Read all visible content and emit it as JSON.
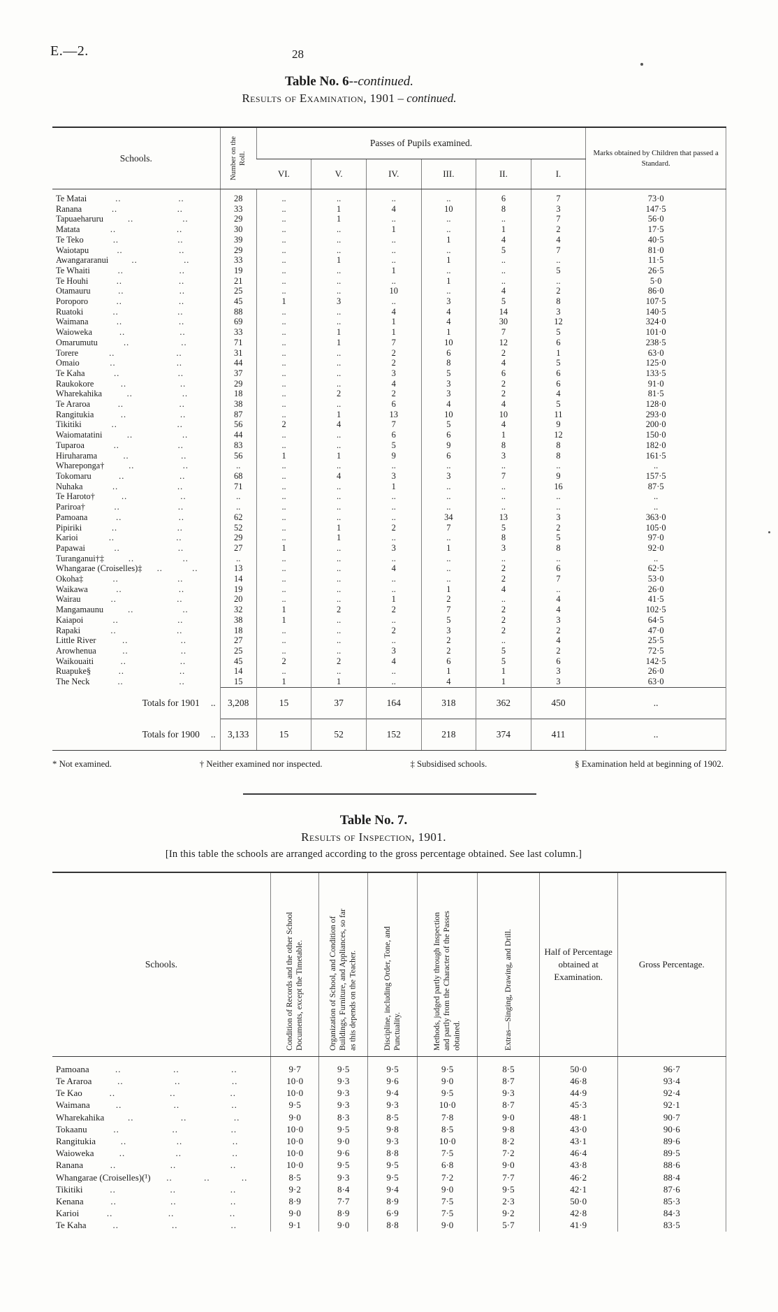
{
  "page": {
    "doc_ref": "E.—2.",
    "page_number": "28"
  },
  "leader": "..",
  "table6": {
    "title_main": "Table No. 6",
    "title_suffix": "--continued.",
    "subtitle_main": "Results of Examination, 1901",
    "subtitle_suffix": "– continued.",
    "headers": {
      "schools": "Schools.",
      "roll": "Number on the Roll.",
      "passes_group": "Passes of Pupils examined.",
      "standards": [
        "VI.",
        "V.",
        "IV.",
        "III.",
        "II.",
        "I."
      ],
      "marks": "Marks obtained by Children that passed a Standard."
    },
    "rows": [
      {
        "name": "Te Matai",
        "values": [
          "28",
          "..",
          "..",
          "..",
          "..",
          "6",
          "7",
          "73·0"
        ]
      },
      {
        "name": "Ranana",
        "values": [
          "33",
          "..",
          "1",
          "4",
          "10",
          "8",
          "3",
          "147·5"
        ]
      },
      {
        "name": "Tapuaeharuru",
        "values": [
          "29",
          "..",
          "1",
          "..",
          "..",
          "..",
          "7",
          "56·0"
        ]
      },
      {
        "name": "Matata",
        "values": [
          "30",
          "..",
          "..",
          "1",
          "..",
          "1",
          "2",
          "17·5"
        ]
      },
      {
        "name": "Te Teko",
        "values": [
          "39",
          "..",
          "..",
          "..",
          "1",
          "4",
          "4",
          "40·5"
        ]
      },
      {
        "name": "Waiotapu",
        "values": [
          "29",
          "..",
          "..",
          "..",
          "..",
          "5",
          "7",
          "81·0"
        ]
      },
      {
        "name": "Awangararanui",
        "values": [
          "33",
          "..",
          "1",
          "..",
          "1",
          "..",
          "..",
          "11·5"
        ]
      },
      {
        "name": "Te Whaiti",
        "values": [
          "19",
          "..",
          "..",
          "1",
          "..",
          "..",
          "5",
          "26·5"
        ]
      },
      {
        "name": "Te Houhi",
        "values": [
          "21",
          "..",
          "..",
          "..",
          "1",
          "..",
          "..",
          "5·0"
        ]
      },
      {
        "name": "Otamauru",
        "values": [
          "25",
          "..",
          "..",
          "10",
          "..",
          "4",
          "2",
          "86·0"
        ]
      },
      {
        "name": "Poroporo",
        "values": [
          "45",
          "1",
          "3",
          "..",
          "3",
          "5",
          "8",
          "107·5"
        ]
      },
      {
        "name": "Ruatoki",
        "values": [
          "88",
          "..",
          "..",
          "4",
          "4",
          "14",
          "3",
          "140·5"
        ]
      },
      {
        "name": "Waimana",
        "values": [
          "69",
          "..",
          "..",
          "1",
          "4",
          "30",
          "12",
          "324·0"
        ]
      },
      {
        "name": "Waioweka",
        "values": [
          "33",
          "..",
          "1",
          "1",
          "1",
          "7",
          "5",
          "101·0"
        ]
      },
      {
        "name": "Omarumutu",
        "values": [
          "71",
          "..",
          "1",
          "7",
          "10",
          "12",
          "6",
          "238·5"
        ]
      },
      {
        "name": "Torere",
        "values": [
          "31",
          "..",
          "..",
          "2",
          "6",
          "2",
          "1",
          "63·0"
        ]
      },
      {
        "name": "Omaio",
        "values": [
          "44",
          "..",
          "..",
          "2",
          "8",
          "4",
          "5",
          "125·0"
        ]
      },
      {
        "name": "Te Kaha",
        "values": [
          "37",
          "..",
          "..",
          "3",
          "5",
          "6",
          "6",
          "133·5"
        ]
      },
      {
        "name": "Raukokore",
        "values": [
          "29",
          "..",
          "..",
          "4",
          "3",
          "2",
          "6",
          "91·0"
        ]
      },
      {
        "name": "Wharekahika",
        "values": [
          "18",
          "..",
          "2",
          "2",
          "3",
          "2",
          "4",
          "81·5"
        ]
      },
      {
        "name": "Te Araroa",
        "values": [
          "38",
          "..",
          "..",
          "6",
          "4",
          "4",
          "5",
          "128·0"
        ]
      },
      {
        "name": "Rangitukia",
        "values": [
          "87",
          "..",
          "1",
          "13",
          "10",
          "10",
          "11",
          "293·0"
        ]
      },
      {
        "name": "Tikitiki",
        "values": [
          "56",
          "2",
          "4",
          "7",
          "5",
          "4",
          "9",
          "200·0"
        ]
      },
      {
        "name": "Waiomatatini",
        "values": [
          "44",
          "..",
          "..",
          "6",
          "6",
          "1",
          "12",
          "150·0"
        ]
      },
      {
        "name": "Tuparoa",
        "values": [
          "83",
          "..",
          "..",
          "5",
          "9",
          "8",
          "8",
          "182·0"
        ]
      },
      {
        "name": "Hiruharama",
        "values": [
          "56",
          "1",
          "1",
          "9",
          "6",
          "3",
          "8",
          "161·5"
        ]
      },
      {
        "name": "Whareponga†",
        "values": [
          "..",
          "..",
          "..",
          "..",
          "..",
          "..",
          "..",
          ".."
        ]
      },
      {
        "name": "Tokomaru",
        "values": [
          "68",
          "..",
          "4",
          "3",
          "3",
          "7",
          "9",
          "157·5"
        ]
      },
      {
        "name": "Nuhaka",
        "values": [
          "71",
          "..",
          "..",
          "1",
          "..",
          "..",
          "16",
          "87·5"
        ]
      },
      {
        "name": "Te Haroto†",
        "values": [
          "..",
          "..",
          "..",
          "..",
          "..",
          "..",
          "..",
          ".."
        ]
      },
      {
        "name": "Pariroa†",
        "values": [
          "..",
          "..",
          "..",
          "..",
          "..",
          "..",
          "..",
          ".."
        ]
      },
      {
        "name": "Pamoana",
        "values": [
          "62",
          "..",
          "..",
          "..",
          "34",
          "13",
          "3",
          "363·0"
        ]
      },
      {
        "name": "Pipiriki",
        "values": [
          "52",
          "..",
          "1",
          "2",
          "7",
          "5",
          "2",
          "105·0"
        ]
      },
      {
        "name": "Karioi",
        "values": [
          "29",
          "..",
          "1",
          "..",
          "..",
          "8",
          "5",
          "97·0"
        ]
      },
      {
        "name": "Papawai",
        "values": [
          "27",
          "1",
          "..",
          "3",
          "1",
          "3",
          "8",
          "92·0"
        ]
      },
      {
        "name": "Turanganui†‡",
        "values": [
          "..",
          "..",
          "..",
          "..",
          "..",
          "..",
          "..",
          ".."
        ]
      },
      {
        "name": "Whangarae (Croiselles)‡",
        "values": [
          "13",
          "..",
          "..",
          "4",
          "..",
          "2",
          "6",
          "62·5"
        ]
      },
      {
        "name": "Okoha‡",
        "values": [
          "14",
          "..",
          "..",
          "..",
          "..",
          "2",
          "7",
          "53·0"
        ]
      },
      {
        "name": "Waikawa",
        "values": [
          "19",
          "..",
          "..",
          "..",
          "1",
          "4",
          "..",
          "26·0"
        ]
      },
      {
        "name": "Wairau",
        "values": [
          "20",
          "..",
          "..",
          "1",
          "2",
          "..",
          "4",
          "41·5"
        ]
      },
      {
        "name": "Mangamaunu",
        "values": [
          "32",
          "1",
          "2",
          "2",
          "7",
          "2",
          "4",
          "102·5"
        ]
      },
      {
        "name": "Kaiapoi",
        "values": [
          "38",
          "1",
          "..",
          "..",
          "5",
          "2",
          "3",
          "64·5"
        ]
      },
      {
        "name": "Rapaki",
        "values": [
          "18",
          "..",
          "..",
          "2",
          "3",
          "2",
          "2",
          "47·0"
        ]
      },
      {
        "name": "Little River",
        "values": [
          "27",
          "..",
          "..",
          "..",
          "2",
          "..",
          "4",
          "25·5"
        ]
      },
      {
        "name": "Arowhenua",
        "values": [
          "25",
          "..",
          "..",
          "3",
          "2",
          "5",
          "2",
          "72·5"
        ]
      },
      {
        "name": "Waikouaiti",
        "values": [
          "45",
          "2",
          "2",
          "4",
          "6",
          "5",
          "6",
          "142·5"
        ]
      },
      {
        "name": "Ruapuke§",
        "values": [
          "14",
          "..",
          "..",
          "..",
          "1",
          "1",
          "3",
          "26·0"
        ]
      },
      {
        "name": "The Neck",
        "values": [
          "15",
          "1",
          "1",
          "..",
          "4",
          "1",
          "3",
          "63·0"
        ]
      }
    ],
    "totals": [
      {
        "label": "Totals for 1901",
        "values": [
          "3,208",
          "15",
          "37",
          "164",
          "318",
          "362",
          "450",
          ".."
        ]
      },
      {
        "label": "Totals for 1900",
        "values": [
          "3,133",
          "15",
          "52",
          "152",
          "218",
          "374",
          "411",
          ".."
        ]
      }
    ],
    "footnotes": [
      "* Not examined.",
      "† Neither examined nor inspected.",
      "‡ Subsidised schools.",
      "§ Examination held at beginning of 1902."
    ]
  },
  "table7": {
    "title": "Table No. 7.",
    "subtitle": "Results of Inspection, 1901.",
    "note": "[In this table the schools are arranged according to the gross percentage obtained.  See last column.]",
    "headers": {
      "schools": "Schools.",
      "rotated": [
        "Condition of Records and the other School Documents, except the Timetable.",
        "Organization of School, and Condition of Buildings, Furniture, and Appliances, so far as this depends on the Teacher.",
        "Discipline, including Order, Tone, and Punctuality.",
        "Methods, judged partly through Inspection and partly from the Character of the Passes obtained.",
        "Extras—Singing, Drawing, and Drill."
      ],
      "half": "Half of Percentage obtained at Examination.",
      "gross": "Gross Percentage."
    },
    "rows": [
      {
        "name": "Pamoana",
        "values": [
          "9·7",
          "9·5",
          "9·5",
          "9·5",
          "8·5",
          "50·0",
          "96·7"
        ]
      },
      {
        "name": "Te Araroa",
        "values": [
          "10·0",
          "9·3",
          "9·6",
          "9·0",
          "8·7",
          "46·8",
          "93·4"
        ]
      },
      {
        "name": "Te Kao",
        "values": [
          "10·0",
          "9·3",
          "9·4",
          "9·5",
          "9·3",
          "44·9",
          "92·4"
        ]
      },
      {
        "name": "Waimana",
        "values": [
          "9·5",
          "9·3",
          "9·3",
          "10·0",
          "8·7",
          "45·3",
          "92·1"
        ]
      },
      {
        "name": "Wharekahika",
        "values": [
          "9·0",
          "8·3",
          "8·5",
          "7·8",
          "9·0",
          "48·1",
          "90·7"
        ]
      },
      {
        "name": "Tokaanu",
        "values": [
          "10·0",
          "9·5",
          "9·8",
          "8·5",
          "9·8",
          "43·0",
          "90·6"
        ]
      },
      {
        "name": "Rangitukia",
        "values": [
          "10·0",
          "9·0",
          "9·3",
          "10·0",
          "8·2",
          "43·1",
          "89·6"
        ]
      },
      {
        "name": "Waioweka",
        "values": [
          "10·0",
          "9·6",
          "8·8",
          "7·5",
          "7·2",
          "46·4",
          "89·5"
        ]
      },
      {
        "name": "Ranana",
        "values": [
          "10·0",
          "9·5",
          "9·5",
          "6·8",
          "9·0",
          "43·8",
          "88·6"
        ]
      },
      {
        "name": "Whangarae (Croiselles)(¹)",
        "values": [
          "8·5",
          "9·3",
          "9·5",
          "7·2",
          "7·7",
          "46·2",
          "88·4"
        ]
      },
      {
        "name": "Tikitiki",
        "values": [
          "9·2",
          "8·4",
          "9·4",
          "9·0",
          "9·5",
          "42·1",
          "87·6"
        ]
      },
      {
        "name": "Kenana",
        "values": [
          "8·9",
          "7·7",
          "8·9",
          "7·5",
          "2·3",
          "50·0",
          "85·3"
        ]
      },
      {
        "name": "Karioi",
        "values": [
          "9·0",
          "8·9",
          "6·9",
          "7·5",
          "9·2",
          "42·8",
          "84·3"
        ]
      },
      {
        "name": "Te Kaha",
        "values": [
          "9·1",
          "9·0",
          "8·8",
          "9·0",
          "5·7",
          "41·9",
          "83·5"
        ]
      }
    ]
  }
}
